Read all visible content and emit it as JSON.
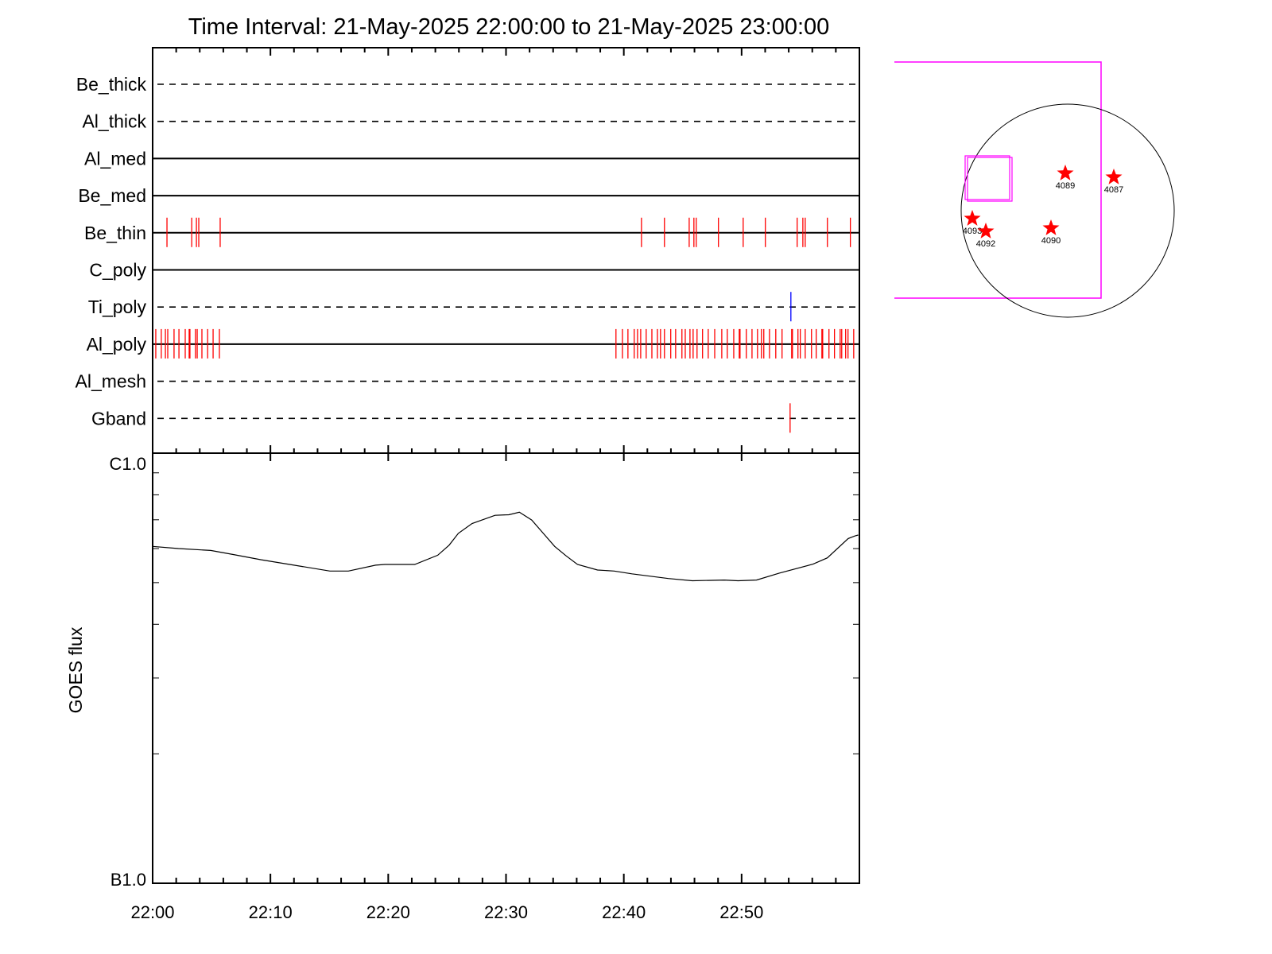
{
  "chart_data": [
    {
      "type": "event-raster",
      "title": "Time Interval: 21-May-2025 22:00:00 to 21-May-2025 23:00:00",
      "xlim": [
        "22:00:00",
        "23:00:00"
      ],
      "x_ticks": [
        "22:00",
        "22:10",
        "22:20",
        "22:30",
        "22:40",
        "22:50"
      ],
      "rows": [
        {
          "label": "Be_thick",
          "style": "dashed",
          "events": []
        },
        {
          "label": "Al_thick",
          "style": "dashed",
          "events": []
        },
        {
          "label": "Al_med",
          "style": "solid",
          "events": []
        },
        {
          "label": "Be_med",
          "style": "solid",
          "events": []
        },
        {
          "label": "Be_thin",
          "style": "solid",
          "color": "#ff0000",
          "events": [
            "22:01:13",
            "22:03:19",
            "22:03:43",
            "22:03:55",
            "22:05:44",
            "22:41:30",
            "22:43:27",
            "22:45:33",
            "22:45:57",
            "22:46:09",
            "22:48:02",
            "22:50:08",
            "22:52:01",
            "22:54:43",
            "22:55:12",
            "22:55:24",
            "22:57:17",
            "22:59:14"
          ]
        },
        {
          "label": "C_poly",
          "style": "solid",
          "events": []
        },
        {
          "label": "Ti_poly",
          "style": "dashed",
          "color": "#0000ff",
          "events": [
            "22:54:11"
          ]
        },
        {
          "label": "Al_poly",
          "style": "solid",
          "color": "#ff0000",
          "events": [
            "22:00:16",
            "22:00:44",
            "22:01:05",
            "22:01:17",
            "22:01:49",
            "22:02:14",
            "22:02:46",
            "22:03:06",
            "22:03:10",
            "22:03:38",
            "22:03:47",
            "22:04:11",
            "22:04:40",
            "22:05:08",
            "22:05:40",
            "22:39:20",
            "22:39:53",
            "22:40:21",
            "22:40:53",
            "22:41:10",
            "22:41:26",
            "22:41:54",
            "22:42:23",
            "22:42:51",
            "22:43:07",
            "22:43:27",
            "22:43:59",
            "22:44:24",
            "22:44:56",
            "22:45:13",
            "22:45:37",
            "22:45:53",
            "22:46:13",
            "22:46:41",
            "22:47:10",
            "22:47:43",
            "22:48:19",
            "22:48:47",
            "22:49:20",
            "22:49:48",
            "22:49:52",
            "22:50:24",
            "22:50:53",
            "22:51:21",
            "22:51:41",
            "22:51:53",
            "22:52:22",
            "22:52:54",
            "22:53:26",
            "22:54:15",
            "22:54:19",
            "22:54:47",
            "22:54:59",
            "22:55:24",
            "22:55:56",
            "22:56:20",
            "22:56:49",
            "22:56:53",
            "22:57:25",
            "22:57:53",
            "22:58:22",
            "22:58:30",
            "22:58:50",
            "22:59:02",
            "22:59:31"
          ]
        },
        {
          "label": "Al_mesh",
          "style": "dashed",
          "events": []
        },
        {
          "label": "Gband",
          "style": "dashed",
          "color": "#ff0000",
          "events": [
            "22:54:07"
          ]
        }
      ]
    },
    {
      "type": "line",
      "ylabel": "GOES flux",
      "yscale": "log",
      "ylim": [
        1e-06,
        1e-05
      ],
      "y_tick_labels": [
        "B1.0",
        "C1.0"
      ],
      "xlim": [
        "22:00:00",
        "23:00:00"
      ],
      "x_tick_labels": [
        "22:00",
        "22:10",
        "22:20",
        "22:30",
        "22:40",
        "22:50"
      ],
      "line_color": "#000000",
      "x": [
        "22:00:00",
        "22:02:12",
        "22:04:56",
        "22:06:53",
        "22:09:13",
        "22:12:43",
        "22:15:03",
        "22:16:37",
        "22:18:56",
        "22:19:43",
        "22:22:15",
        "22:24:12",
        "22:25:10",
        "22:25:57",
        "22:27:07",
        "22:29:04",
        "22:30:14",
        "22:31:08",
        "22:32:11",
        "22:33:10",
        "22:34:08",
        "22:35:06",
        "22:36:04",
        "22:37:46",
        "22:39:11",
        "22:40:41",
        "22:43:47",
        "22:45:49",
        "22:48:32",
        "22:49:42",
        "22:51:16",
        "22:53:12",
        "22:56:04",
        "22:57:17",
        "22:59:03",
        "22:59:38",
        "22:59:54"
      ],
      "y": [
        6.07e-06,
        6e-06,
        5.94e-06,
        5.81e-06,
        5.65e-06,
        5.45e-06,
        5.32e-06,
        5.32e-06,
        5.49e-06,
        5.51e-06,
        5.51e-06,
        5.79e-06,
        6.11e-06,
        6.51e-06,
        6.86e-06,
        7.17e-06,
        7.19e-06,
        7.29e-06,
        6.99e-06,
        6.51e-06,
        6.07e-06,
        5.77e-06,
        5.51e-06,
        5.35e-06,
        5.32e-06,
        5.24e-06,
        5.11e-06,
        5.05e-06,
        5.07e-06,
        5.05e-06,
        5.07e-06,
        5.26e-06,
        5.52e-06,
        5.71e-06,
        6.33e-06,
        6.42e-06,
        6.45e-06
      ]
    },
    {
      "type": "solar-disk-map",
      "fov_color": "#ff00ff",
      "star_color": "#ff0000",
      "active_regions": [
        {
          "label": "4089"
        },
        {
          "label": "4087"
        },
        {
          "label": "4093"
        },
        {
          "label": "4092"
        },
        {
          "label": "4090"
        }
      ]
    }
  ]
}
